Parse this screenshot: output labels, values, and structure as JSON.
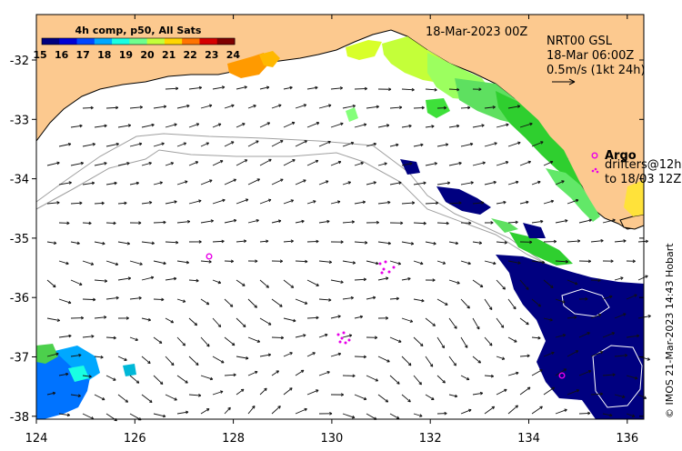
{
  "title": {
    "composite": "4h comp, p50, All Sats",
    "date": "18-Mar-2023 00Z"
  },
  "colorbar": {
    "ticks": [
      "15",
      "16",
      "17",
      "18",
      "19",
      "20",
      "21",
      "22",
      "23",
      "24"
    ],
    "colors": [
      "#00007f",
      "#0000d6",
      "#0046ff",
      "#00a8ff",
      "#19ffe3",
      "#6eff8e",
      "#c4ff39",
      "#ffd600",
      "#ff7300",
      "#d60000",
      "#7f0000"
    ]
  },
  "currents": {
    "product": "NRT00 GSL",
    "time": "18-Mar 06:00Z",
    "scale": "0.5m/s (1kt 24h)"
  },
  "argo": {
    "label": "Argo",
    "drifters_line1": "drifters@12h",
    "drifters_line2": "to 18/03 12Z",
    "color": "#e800e8"
  },
  "axes": {
    "x_ticks": [
      "124",
      "126",
      "128",
      "130",
      "132",
      "134",
      "136"
    ],
    "y_ticks": [
      "-32",
      "-33",
      "-34",
      "-35",
      "-36",
      "-37",
      "-38"
    ]
  },
  "credit": "© IMOS 21-Mar-2023 14:43 Hobart",
  "colors": {
    "land": "#fcc98f",
    "coast": "#000000",
    "isobath": "#a0a0a0"
  }
}
